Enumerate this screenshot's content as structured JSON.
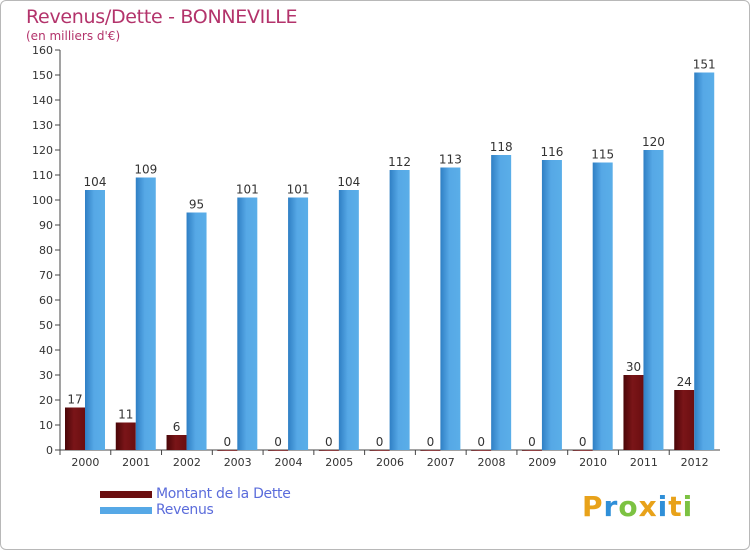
{
  "title": "Revenus/Dette - BONNEVILLE",
  "subtitle": "(en milliers d'€)",
  "chart_data": {
    "type": "bar",
    "title": "Revenus/Dette - BONNEVILLE",
    "subtitle": "(en milliers d'€)",
    "categories": [
      "2000",
      "2001",
      "2002",
      "2003",
      "2004",
      "2005",
      "2006",
      "2007",
      "2008",
      "2009",
      "2010",
      "2011",
      "2012"
    ],
    "series": [
      {
        "name": "Montant de la Dette",
        "color": "#6b0e10",
        "values": [
          17,
          11,
          6,
          0,
          0,
          0,
          0,
          0,
          0,
          0,
          0,
          30,
          24
        ]
      },
      {
        "name": "Revenus",
        "color": "#56a8e6",
        "values": [
          104,
          109,
          95,
          101,
          101,
          104,
          112,
          113,
          118,
          116,
          115,
          120,
          151
        ]
      }
    ],
    "ylim": [
      0,
      160
    ],
    "yticks": [
      0,
      10,
      20,
      30,
      40,
      50,
      60,
      70,
      80,
      90,
      100,
      110,
      120,
      130,
      140,
      150,
      160
    ],
    "grid": false,
    "legend_position": "bottom-left"
  },
  "logo": {
    "letters": [
      "P",
      "r",
      "o",
      "x",
      "i",
      "t",
      "i"
    ],
    "colors": [
      "#e8a21a",
      "#2f8fd8",
      "#7cc242",
      "#e8a21a",
      "#2f8fd8",
      "#e8a21a",
      "#7cc242"
    ]
  }
}
